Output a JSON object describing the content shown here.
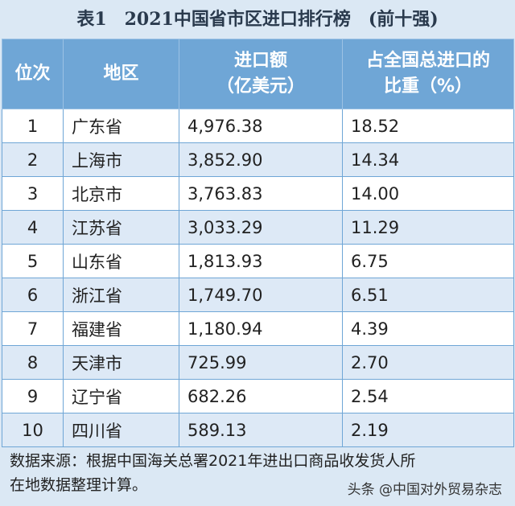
{
  "header": {
    "title": "表1　2021中国省市区进口排行榜　(前十强)"
  },
  "table": {
    "columns": [
      [
        "位次"
      ],
      [
        "地区"
      ],
      [
        "进口额",
        "（亿美元）"
      ],
      [
        "占全国总进口的",
        "比重（%）"
      ]
    ],
    "rows": [
      [
        "1",
        "广东省",
        "4,976.38",
        "18.52"
      ],
      [
        "2",
        "上海市",
        "3,852.90",
        "14.34"
      ],
      [
        "3",
        "北京市",
        "3,763.83",
        "14.00"
      ],
      [
        "4",
        "江苏省",
        "3,033.29",
        "11.29"
      ],
      [
        "5",
        "山东省",
        "1,813.93",
        "6.75"
      ],
      [
        "6",
        "浙江省",
        "1,749.70",
        "6.51"
      ],
      [
        "7",
        "福建省",
        "1,180.94",
        "4.39"
      ],
      [
        "8",
        "天津市",
        "725.99",
        "2.70"
      ],
      [
        "9",
        "辽宁省",
        "682.26",
        "2.54"
      ],
      [
        "10",
        "四川省",
        "589.13",
        "2.19"
      ]
    ]
  },
  "footer": {
    "lines": [
      "数据来源：根据中国海关总署2021年进出口商品收发货人所",
      "在地数据整理计算。"
    ],
    "watermark": "头条 @中国对外贸易杂志"
  }
}
